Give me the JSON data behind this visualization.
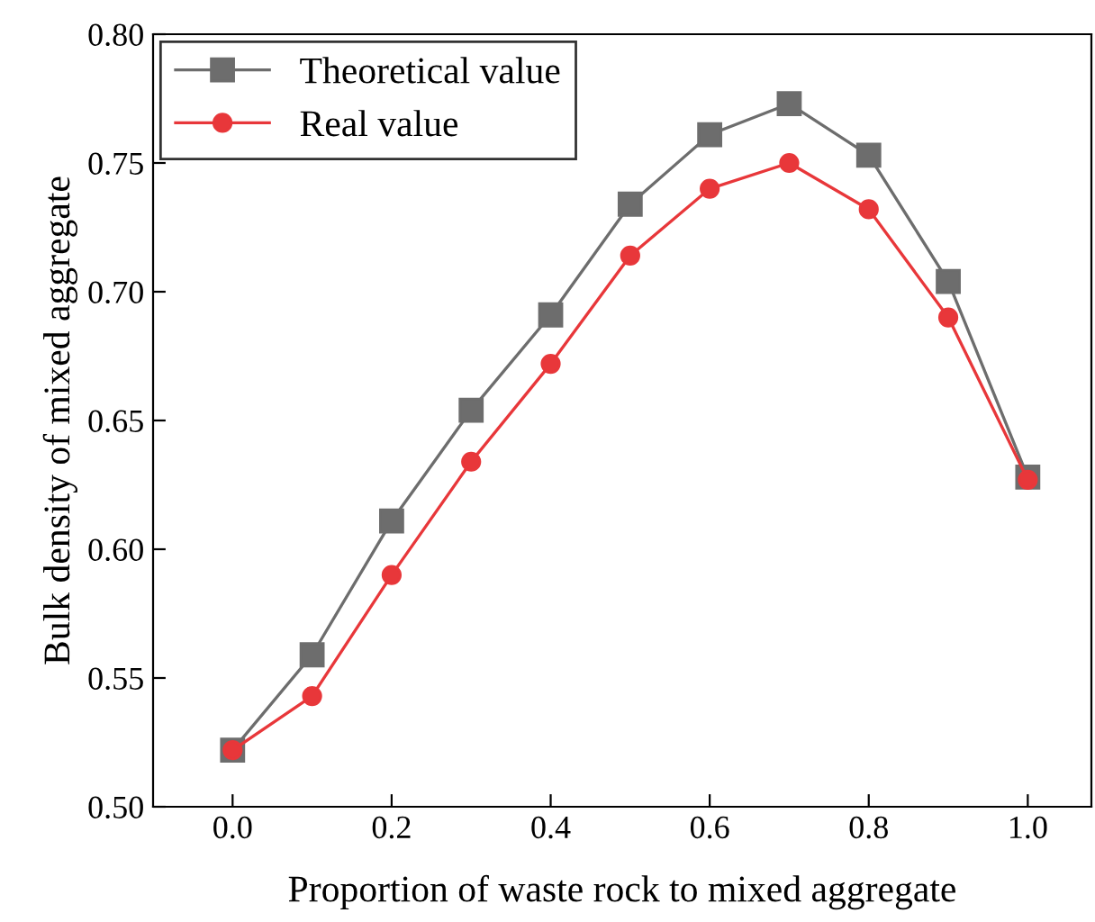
{
  "chart_data": {
    "type": "line",
    "xlabel": "Proportion of waste rock to mixed aggregate",
    "ylabel": "Bulk density of mixed aggregate",
    "x": [
      0.0,
      0.1,
      0.2,
      0.3,
      0.4,
      0.5,
      0.6,
      0.7,
      0.8,
      0.9,
      1.0
    ],
    "series": [
      {
        "name": "Theoretical value",
        "color": "#6d6d6d",
        "marker": "square",
        "values": [
          0.522,
          0.559,
          0.611,
          0.654,
          0.691,
          0.734,
          0.761,
          0.773,
          0.753,
          0.704,
          0.628
        ]
      },
      {
        "name": "Real value",
        "color": "#e8373a",
        "marker": "circle",
        "values": [
          0.522,
          0.543,
          0.59,
          0.634,
          0.672,
          0.714,
          0.74,
          0.75,
          0.732,
          0.69,
          0.627
        ]
      }
    ],
    "xlim": [
      -0.1,
      1.08
    ],
    "xticks": [
      {
        "value": 0.0,
        "label": "0.0"
      },
      {
        "value": 0.2,
        "label": "0.2"
      },
      {
        "value": 0.4,
        "label": "0.4"
      },
      {
        "value": 0.6,
        "label": "0.6"
      },
      {
        "value": 0.8,
        "label": "0.8"
      },
      {
        "value": 1.0,
        "label": "1.0"
      }
    ],
    "ylim": [
      0.5,
      0.8
    ],
    "yticks": [
      {
        "value": 0.5,
        "label": "0.50"
      },
      {
        "value": 0.55,
        "label": "0.55"
      },
      {
        "value": 0.6,
        "label": "0.60"
      },
      {
        "value": 0.65,
        "label": "0.65"
      },
      {
        "value": 0.7,
        "label": "0.70"
      },
      {
        "value": 0.75,
        "label": "0.75"
      },
      {
        "value": 0.8,
        "label": "0.80"
      }
    ],
    "grid": false,
    "legend": "top left",
    "line_style": "solid"
  }
}
